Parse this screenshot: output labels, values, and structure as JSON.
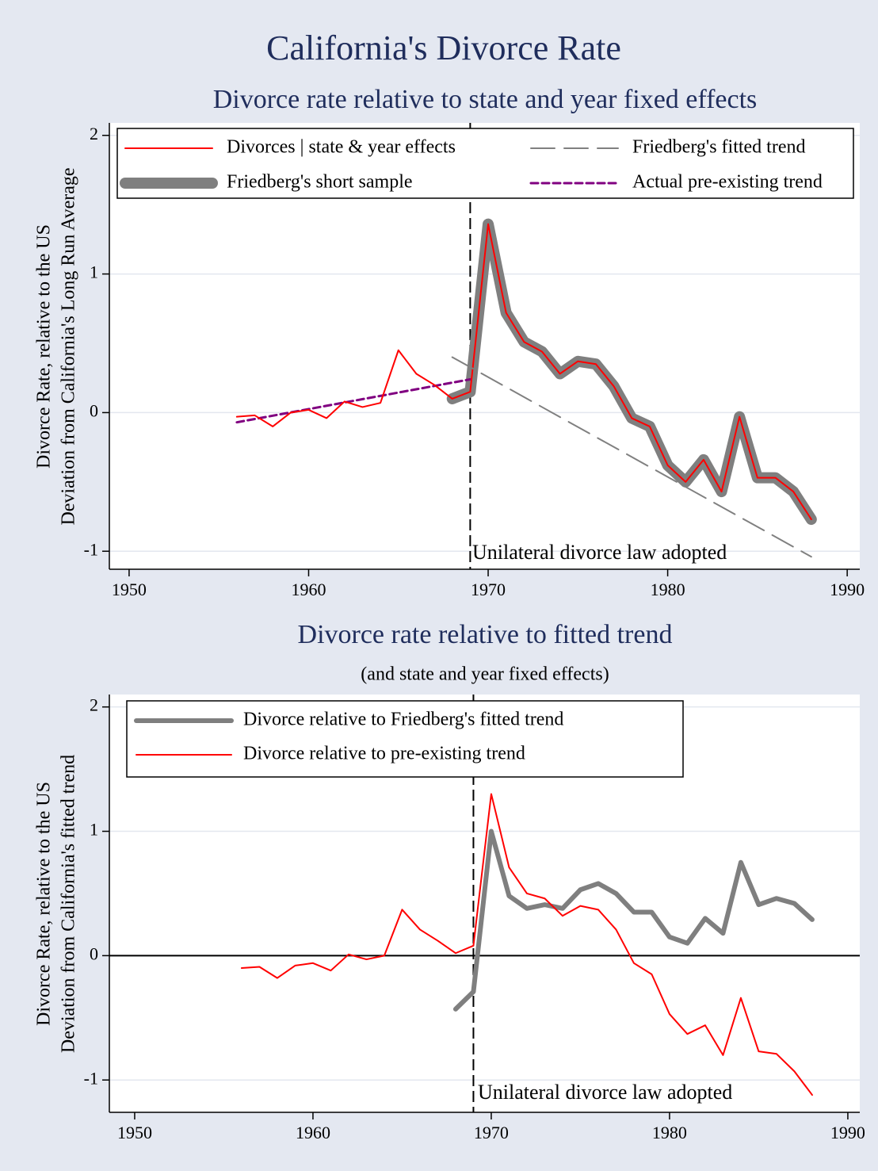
{
  "title": "California's Divorce Rate",
  "chart_data": [
    {
      "type": "line",
      "title": "Divorce rate relative to state and year fixed effects",
      "ylabel": [
        "Divorce Rate, relative to the US",
        "Deviation from California's Long Run Average"
      ],
      "xlim": [
        1948.9,
        1990.7
      ],
      "xticks": [
        1950,
        1960,
        1970,
        1980,
        1990
      ],
      "ylim": [
        -1.13,
        2.09
      ],
      "yticks": [
        -1,
        0,
        1,
        2
      ],
      "grid": true,
      "vline": 1969,
      "annotation": "Unilateral divorce law adopted",
      "series": [
        {
          "name": "Divorces | state & year effects",
          "color": "#ff0000",
          "width": 2,
          "dash": "solid",
          "x": [
            1956,
            1957,
            1958,
            1959,
            1960,
            1961,
            1962,
            1963,
            1964,
            1965,
            1966,
            1967,
            1968,
            1969,
            1970,
            1971,
            1972,
            1973,
            1974,
            1975,
            1976,
            1977,
            1978,
            1979,
            1980,
            1981,
            1982,
            1983,
            1984,
            1985,
            1986,
            1987,
            1988
          ],
          "values": [
            -0.03,
            -0.02,
            -0.1,
            0.0,
            0.02,
            -0.04,
            0.08,
            0.04,
            0.07,
            0.45,
            0.28,
            0.2,
            0.1,
            0.15,
            1.36,
            0.72,
            0.51,
            0.44,
            0.28,
            0.37,
            0.35,
            0.19,
            -0.04,
            -0.1,
            -0.38,
            -0.5,
            -0.34,
            -0.57,
            -0.03,
            -0.47,
            -0.47,
            -0.57,
            -0.77
          ]
        },
        {
          "name": "Friedberg's short sample",
          "color": "#7f7f7f",
          "width": 14,
          "dash": "solid",
          "x": [
            1968,
            1969,
            1970,
            1971,
            1972,
            1973,
            1974,
            1975,
            1976,
            1977,
            1978,
            1979,
            1980,
            1981,
            1982,
            1983,
            1984,
            1985,
            1986,
            1987,
            1988
          ],
          "values": [
            0.1,
            0.15,
            1.36,
            0.72,
            0.51,
            0.44,
            0.28,
            0.37,
            0.35,
            0.19,
            -0.04,
            -0.1,
            -0.38,
            -0.5,
            -0.34,
            -0.57,
            -0.03,
            -0.47,
            -0.47,
            -0.57,
            -0.77
          ]
        },
        {
          "name": "Friedberg's fitted trend",
          "color": "#808080",
          "width": 2,
          "dash": "longdash",
          "x": [
            1968,
            1988
          ],
          "values": [
            0.4,
            -1.04
          ]
        },
        {
          "name": "Actual pre-existing trend",
          "color": "#800080",
          "width": 3,
          "dash": "dash",
          "x": [
            1956,
            1969
          ],
          "values": [
            -0.07,
            0.24
          ]
        }
      ]
    },
    {
      "type": "line",
      "title": "Divorce rate relative to fitted trend",
      "subtitle": "(and state and year fixed effects)",
      "ylabel": [
        "Divorce Rate, relative to the US",
        "Deviation from California's fitted trend"
      ],
      "xlim": [
        1948.58,
        1990.67
      ],
      "xticks": [
        1950,
        1960,
        1970,
        1980,
        1990
      ],
      "ylim": [
        -1.26,
        2.1
      ],
      "yticks": [
        -1,
        0,
        1,
        2
      ],
      "grid": true,
      "vline": 1969,
      "hline": 0,
      "annotation": "Unilateral divorce law adopted",
      "series": [
        {
          "name": "Divorce relative to Friedberg's fitted trend",
          "color": "#7f7f7f",
          "width": 6,
          "dash": "solid",
          "x": [
            1968,
            1969,
            1970,
            1971,
            1972,
            1973,
            1974,
            1975,
            1976,
            1977,
            1978,
            1979,
            1980,
            1981,
            1982,
            1983,
            1984,
            1985,
            1986,
            1987,
            1988
          ],
          "values": [
            -0.43,
            -0.29,
            1.0,
            0.48,
            0.38,
            0.41,
            0.38,
            0.53,
            0.58,
            0.5,
            0.35,
            0.35,
            0.15,
            0.1,
            0.3,
            0.18,
            0.75,
            0.41,
            0.46,
            0.42,
            0.29
          ]
        },
        {
          "name": "Divorce relative to pre-existing trend",
          "color": "#ff0000",
          "width": 2,
          "dash": "solid",
          "x": [
            1956,
            1957,
            1958,
            1959,
            1960,
            1961,
            1962,
            1963,
            1964,
            1965,
            1966,
            1967,
            1968,
            1969,
            1970,
            1971,
            1972,
            1973,
            1974,
            1975,
            1976,
            1977,
            1978,
            1979,
            1980,
            1981,
            1982,
            1983,
            1984,
            1985,
            1986,
            1987,
            1988
          ],
          "values": [
            -0.1,
            -0.09,
            -0.18,
            -0.08,
            -0.06,
            -0.12,
            0.01,
            -0.03,
            0.0,
            0.37,
            0.21,
            0.12,
            0.02,
            0.08,
            1.3,
            0.71,
            0.5,
            0.46,
            0.32,
            0.4,
            0.37,
            0.21,
            -0.06,
            -0.15,
            -0.47,
            -0.63,
            -0.56,
            -0.8,
            -0.34,
            -0.77,
            -0.79,
            -0.93,
            -1.12
          ]
        }
      ]
    }
  ]
}
